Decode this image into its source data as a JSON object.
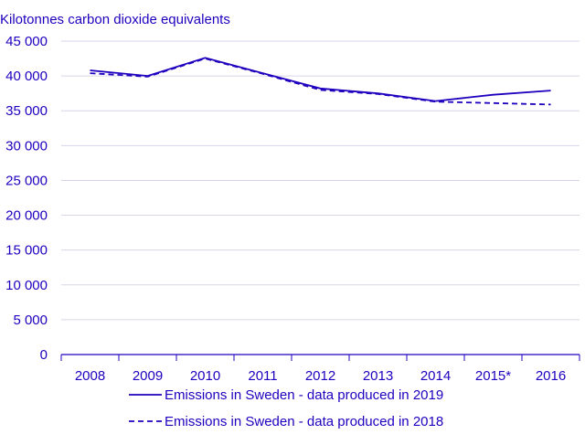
{
  "chart_data": {
    "type": "line",
    "ylabel": "Kilotonnes carbon dioxide equivalents",
    "categories": [
      "2008",
      "2009",
      "2010",
      "2011",
      "2012",
      "2013",
      "2014",
      "2015*",
      "2016"
    ],
    "ylim": [
      0,
      45000
    ],
    "yticks": [
      0,
      5000,
      10000,
      15000,
      20000,
      25000,
      30000,
      35000,
      40000,
      45000
    ],
    "ytick_labels": [
      "0",
      "5 000",
      "10 000",
      "15 000",
      "20 000",
      "25 000",
      "30 000",
      "35 000",
      "40 000",
      "45 000"
    ],
    "grid": true,
    "legend_position": "bottom",
    "series": [
      {
        "name": "Emissions in Sweden - data produced in 2019",
        "style": "solid",
        "color": "#1e00be",
        "values": [
          40800,
          40000,
          42600,
          40400,
          38200,
          37500,
          36400,
          37300,
          37900
        ]
      },
      {
        "name": "Emissions in Sweden - data produced in 2018",
        "style": "dashed",
        "color": "#1e00be",
        "values": [
          40400,
          39900,
          42500,
          40300,
          38000,
          37400,
          36300,
          36100,
          35900
        ]
      }
    ]
  },
  "colors": {
    "accent": "#1e00be",
    "grid": "#d6d6e8",
    "axis": "#1e00be"
  }
}
